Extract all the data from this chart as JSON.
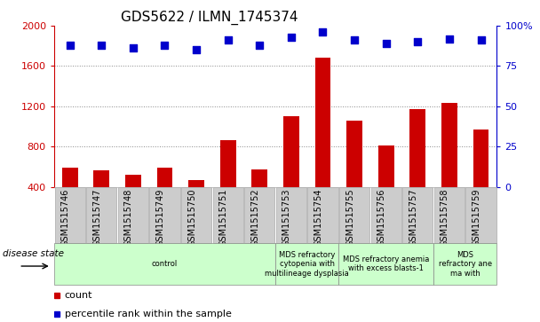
{
  "title": "GDS5622 / ILMN_1745374",
  "samples": [
    "GSM1515746",
    "GSM1515747",
    "GSM1515748",
    "GSM1515749",
    "GSM1515750",
    "GSM1515751",
    "GSM1515752",
    "GSM1515753",
    "GSM1515754",
    "GSM1515755",
    "GSM1515756",
    "GSM1515757",
    "GSM1515758",
    "GSM1515759"
  ],
  "counts": [
    590,
    560,
    520,
    590,
    470,
    860,
    570,
    1100,
    1680,
    1060,
    810,
    1170,
    1230,
    970
  ],
  "percentile_ranks": [
    88,
    88,
    86,
    88,
    85,
    91,
    88,
    93,
    96,
    91,
    89,
    90,
    92,
    91
  ],
  "ylim_left": [
    400,
    2000
  ],
  "ylim_right": [
    0,
    100
  ],
  "yticks_left": [
    400,
    800,
    1200,
    1600,
    2000
  ],
  "yticks_right": [
    0,
    25,
    50,
    75,
    100
  ],
  "bar_color": "#cc0000",
  "dot_color": "#0000cc",
  "bar_width": 0.5,
  "dot_size": 40,
  "disease_groups": [
    {
      "label": "control",
      "start": 0,
      "end": 7
    },
    {
      "label": "MDS refractory\ncytopenia with\nmultilineage dysplasia",
      "start": 7,
      "end": 9
    },
    {
      "label": "MDS refractory anemia\nwith excess blasts-1",
      "start": 9,
      "end": 12
    },
    {
      "label": "MDS\nrefractory ane\nma with",
      "start": 12,
      "end": 14
    }
  ],
  "disease_group_color": "#ccffcc",
  "disease_group_edge": "#888888",
  "xlabel_group": "disease state",
  "legend_count": "count",
  "legend_percentile": "percentile rank within the sample",
  "tick_color_left": "#cc0000",
  "tick_color_right": "#0000cc",
  "title_fontsize": 11,
  "tick_fontsize": 8,
  "sample_fontsize": 7,
  "xtick_bg_color": "#cccccc",
  "plot_bg": "#ffffff",
  "grid_color": "#888888"
}
